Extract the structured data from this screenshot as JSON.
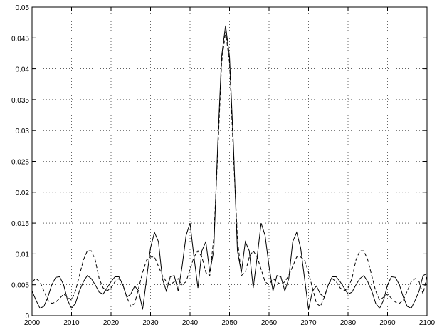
{
  "chart_data": {
    "type": "line",
    "x": [
      2000,
      2001,
      2002,
      2003,
      2004,
      2005,
      2006,
      2007,
      2008,
      2009,
      2010,
      2011,
      2012,
      2013,
      2014,
      2015,
      2016,
      2017,
      2018,
      2019,
      2020,
      2021,
      2022,
      2023,
      2024,
      2025,
      2026,
      2027,
      2028,
      2029,
      2030,
      2031,
      2032,
      2033,
      2034,
      2035,
      2036,
      2037,
      2038,
      2039,
      2040,
      2041,
      2042,
      2043,
      2044,
      2045,
      2046,
      2047,
      2048,
      2049,
      2050,
      2051,
      2052,
      2053,
      2054,
      2055,
      2056,
      2057,
      2058,
      2059,
      2060,
      2061,
      2062,
      2063,
      2064,
      2065,
      2066,
      2067,
      2068,
      2069,
      2070,
      2071,
      2072,
      2073,
      2074,
      2075,
      2076,
      2077,
      2078,
      2079,
      2080,
      2081,
      2082,
      2083,
      2084,
      2085,
      2086,
      2087,
      2088,
      2089,
      2090,
      2091,
      2092,
      2093,
      2094,
      2095,
      2096,
      2097,
      2098,
      2099,
      2100
    ],
    "series": [
      {
        "color": "#000000",
        "line_style": "solid",
        "values": [
          0.004,
          0.0025,
          0.0012,
          0.0015,
          0.003,
          0.005,
          0.0062,
          0.0063,
          0.005,
          0.0025,
          0.0012,
          0.002,
          0.004,
          0.0055,
          0.0065,
          0.006,
          0.005,
          0.0038,
          0.0035,
          0.0045,
          0.0055,
          0.0063,
          0.0063,
          0.005,
          0.003,
          0.0035,
          0.0048,
          0.004,
          0.001,
          0.006,
          0.011,
          0.0135,
          0.012,
          0.006,
          0.004,
          0.0063,
          0.0065,
          0.004,
          0.008,
          0.013,
          0.015,
          0.0095,
          0.0045,
          0.0105,
          0.012,
          0.007,
          0.0105,
          0.0275,
          0.042,
          0.047,
          0.042,
          0.0275,
          0.0105,
          0.007,
          0.012,
          0.0105,
          0.0045,
          0.0095,
          0.015,
          0.013,
          0.008,
          0.004,
          0.0065,
          0.0063,
          0.004,
          0.006,
          0.012,
          0.0135,
          0.011,
          0.006,
          0.001,
          0.004,
          0.0048,
          0.0035,
          0.003,
          0.005,
          0.0063,
          0.0063,
          0.0055,
          0.0045,
          0.0035,
          0.0038,
          0.005,
          0.006,
          0.0065,
          0.0055,
          0.004,
          0.002,
          0.0012,
          0.0025,
          0.005,
          0.0063,
          0.0062,
          0.005,
          0.003,
          0.0015,
          0.0012,
          0.0025,
          0.004,
          0.0065,
          0.0068
        ]
      },
      {
        "color": "#000000",
        "line_style": "dashed",
        "values": [
          0.0055,
          0.006,
          0.0055,
          0.004,
          0.0025,
          0.002,
          0.0022,
          0.0028,
          0.0035,
          0.003,
          0.0025,
          0.004,
          0.0065,
          0.009,
          0.0105,
          0.0105,
          0.009,
          0.006,
          0.0045,
          0.004,
          0.0045,
          0.0055,
          0.006,
          0.005,
          0.003,
          0.0015,
          0.002,
          0.0045,
          0.007,
          0.009,
          0.0095,
          0.0095,
          0.008,
          0.0065,
          0.0055,
          0.005,
          0.0055,
          0.006,
          0.005,
          0.0055,
          0.0075,
          0.0095,
          0.0105,
          0.0095,
          0.007,
          0.0065,
          0.0125,
          0.026,
          0.041,
          0.046,
          0.041,
          0.026,
          0.0125,
          0.0065,
          0.007,
          0.0095,
          0.0105,
          0.0095,
          0.0075,
          0.0055,
          0.005,
          0.006,
          0.0055,
          0.005,
          0.0055,
          0.0065,
          0.008,
          0.0095,
          0.0095,
          0.009,
          0.007,
          0.0045,
          0.002,
          0.0015,
          0.003,
          0.005,
          0.006,
          0.0055,
          0.0045,
          0.004,
          0.0045,
          0.006,
          0.009,
          0.0105,
          0.0105,
          0.009,
          0.0065,
          0.004,
          0.0025,
          0.003,
          0.0035,
          0.0028,
          0.0022,
          0.002,
          0.0025,
          0.004,
          0.0055,
          0.006,
          0.0055,
          0.0035,
          0.0065
        ]
      }
    ],
    "xlim": [
      2000,
      2100
    ],
    "xticks": [
      2000,
      2010,
      2020,
      2030,
      2040,
      2050,
      2060,
      2070,
      2080,
      2090,
      2100
    ],
    "ylim": [
      0,
      0.05
    ],
    "yticks": [
      0,
      0.005,
      0.01,
      0.015,
      0.02,
      0.025,
      0.03,
      0.035,
      0.04,
      0.045,
      0.05
    ],
    "grid": true
  }
}
